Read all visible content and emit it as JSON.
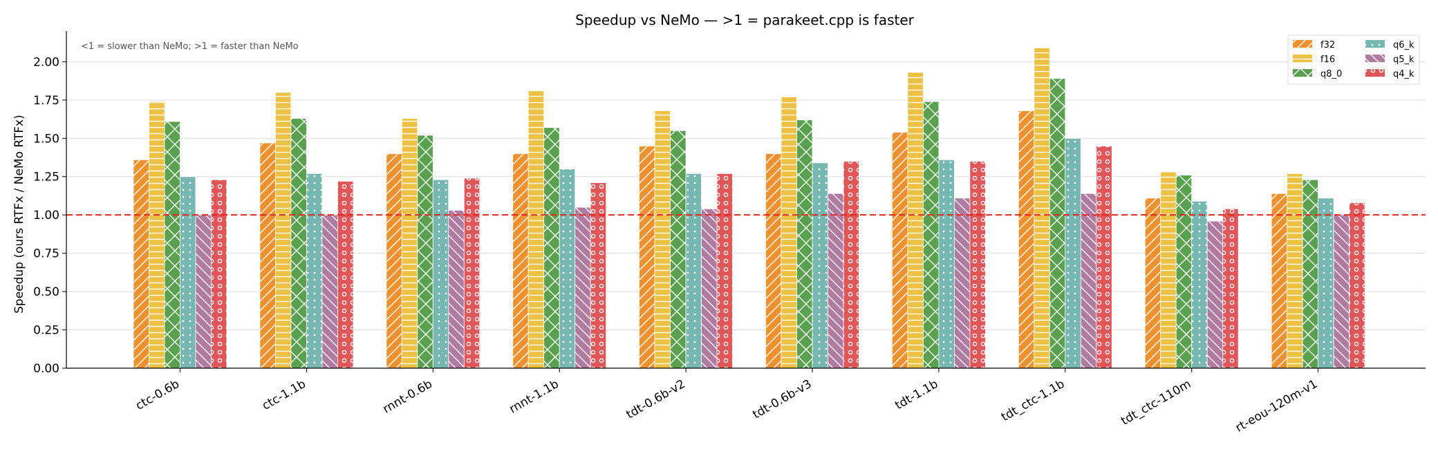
{
  "chart_data": {
    "type": "bar",
    "title": "Speedup vs NeMo  — >1 = parakeet.cpp is faster",
    "ylabel": "Speedup  (ours RTFx / NeMo RTFx)",
    "xlabel": "",
    "annotation": "<1 = slower than NeMo;  >1 = faster than NeMo",
    "ylim": [
      0,
      2.2
    ],
    "yticks": [
      0.0,
      0.25,
      0.5,
      0.75,
      1.0,
      1.25,
      1.5,
      1.75,
      2.0
    ],
    "ytick_labels": [
      "0.00",
      "0.25",
      "0.50",
      "0.75",
      "1.00",
      "1.25",
      "1.50",
      "1.75",
      "2.00"
    ],
    "reference_line": 1.0,
    "grid": "horizontal",
    "legend_position": "top-right",
    "categories": [
      "ctc-0.6b",
      "ctc-1.1b",
      "rnnt-0.6b",
      "rnnt-1.1b",
      "tdt-0.6b-v2",
      "tdt-0.6b-v3",
      "tdt-1.1b",
      "tdt_ctc-1.1b",
      "tdt_ctc-110m",
      "rt-eou-120m-v1"
    ],
    "series": [
      {
        "name": "f32",
        "color": "#F0912F",
        "pattern": "diagonal",
        "values": [
          1.36,
          1.47,
          1.4,
          1.4,
          1.45,
          1.4,
          1.54,
          1.68,
          1.11,
          1.14
        ]
      },
      {
        "name": "f16",
        "color": "#EDC244",
        "pattern": "horizontal",
        "values": [
          1.74,
          1.8,
          1.63,
          1.81,
          1.68,
          1.77,
          1.93,
          2.09,
          1.28,
          1.27
        ]
      },
      {
        "name": "q8_0",
        "color": "#59A14F",
        "pattern": "cross",
        "values": [
          1.61,
          1.63,
          1.52,
          1.57,
          1.55,
          1.62,
          1.74,
          1.89,
          1.26,
          1.23
        ]
      },
      {
        "name": "q6_k",
        "color": "#76B7B2",
        "pattern": "dots",
        "values": [
          1.25,
          1.27,
          1.23,
          1.3,
          1.27,
          1.34,
          1.36,
          1.5,
          1.09,
          1.11
        ]
      },
      {
        "name": "q5_k",
        "color": "#B07AA1",
        "pattern": "backslash",
        "values": [
          1.0,
          1.0,
          1.03,
          1.05,
          1.04,
          1.14,
          1.11,
          1.14,
          0.96,
          1.0
        ]
      },
      {
        "name": "q4_k",
        "color": "#E15759",
        "pattern": "circles",
        "values": [
          1.23,
          1.22,
          1.24,
          1.21,
          1.27,
          1.35,
          1.35,
          1.45,
          1.04,
          1.08
        ]
      }
    ]
  }
}
